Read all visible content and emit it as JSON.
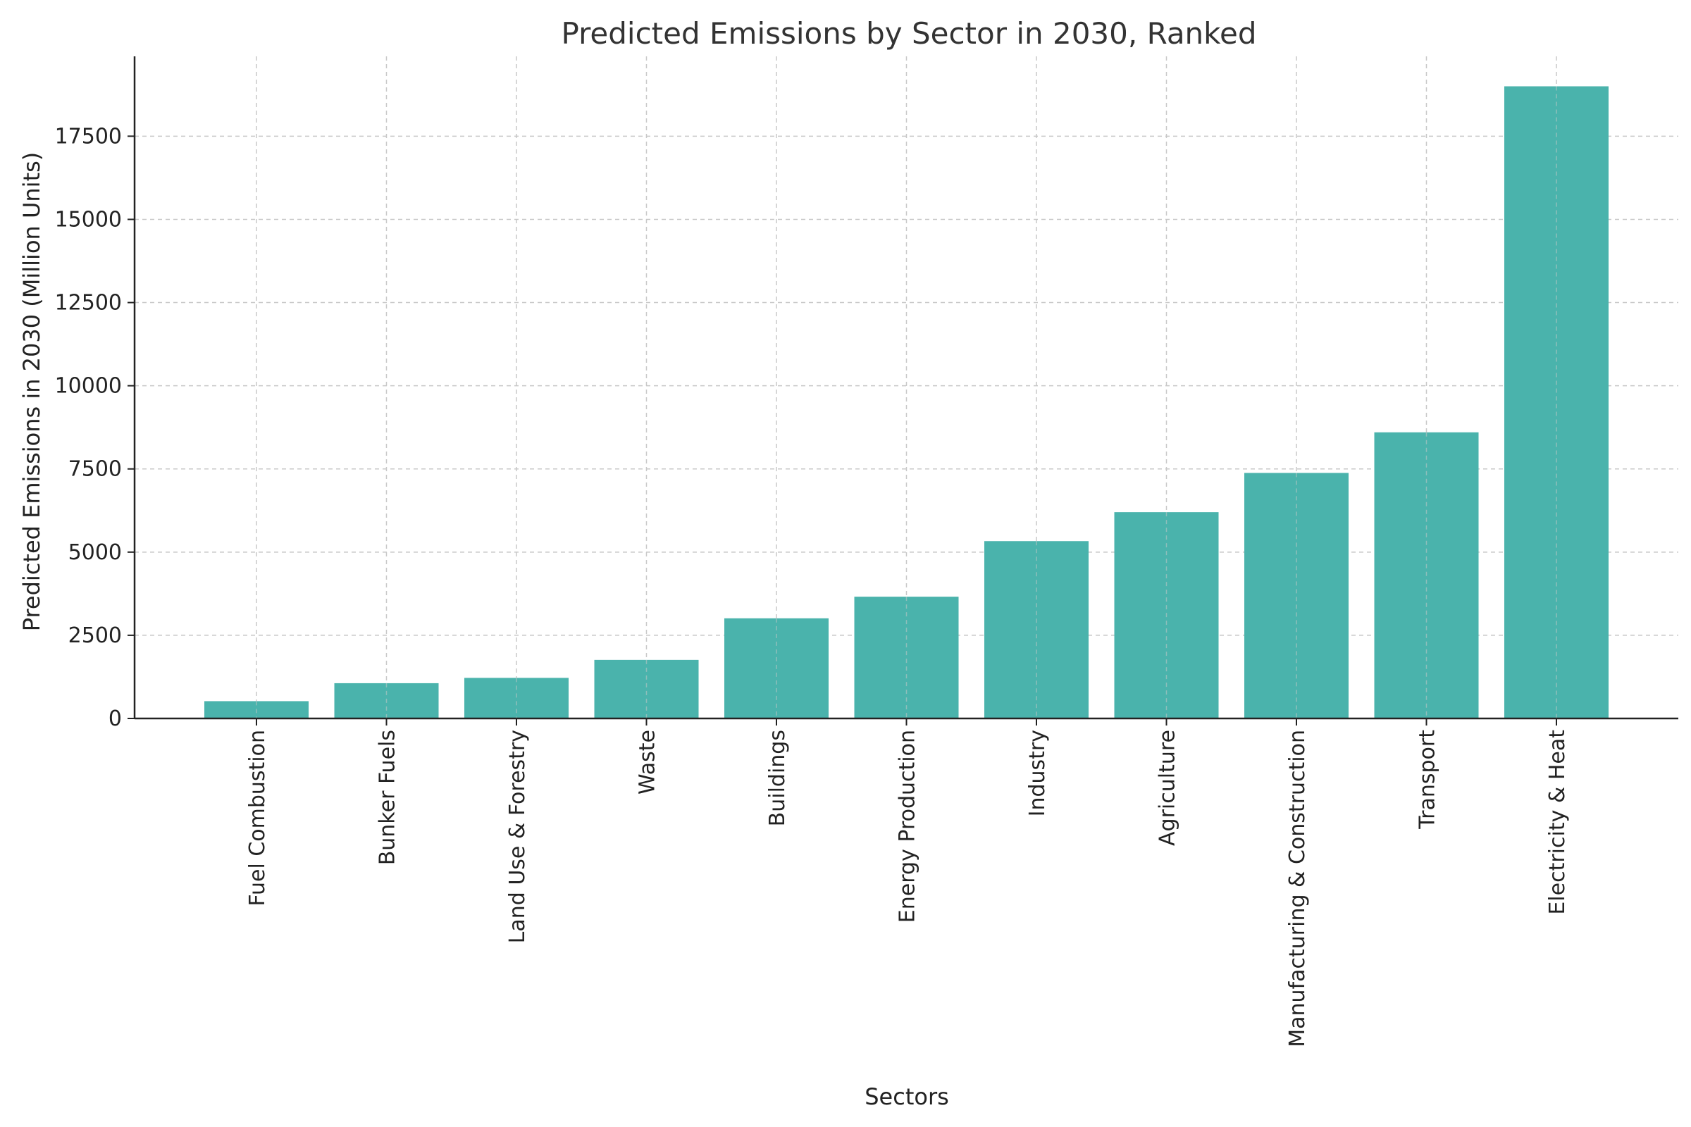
{
  "chart_data": {
    "type": "bar",
    "title": "Predicted Emissions by Sector in 2030, Ranked",
    "xlabel": "Sectors",
    "ylabel": "Predicted Emissions in 2030 (Million Units)",
    "categories": [
      "Fuel Combustion",
      "Bunker Fuels",
      "Land Use & Forestry",
      "Waste",
      "Buildings",
      "Energy Production",
      "Industry",
      "Agriculture",
      "Manufacturing & Construction",
      "Transport",
      "Electricity & Heat"
    ],
    "values": [
      520,
      1060,
      1220,
      1760,
      3010,
      3660,
      5330,
      6200,
      7380,
      8600,
      19000
    ],
    "ylim": [
      0,
      20000
    ],
    "yticks": [
      0,
      2500,
      5000,
      7500,
      10000,
      12500,
      15000,
      17500
    ],
    "grid": true,
    "bar_color": "#4ab3ac",
    "orientation": "vertical",
    "sort": "ascending"
  }
}
